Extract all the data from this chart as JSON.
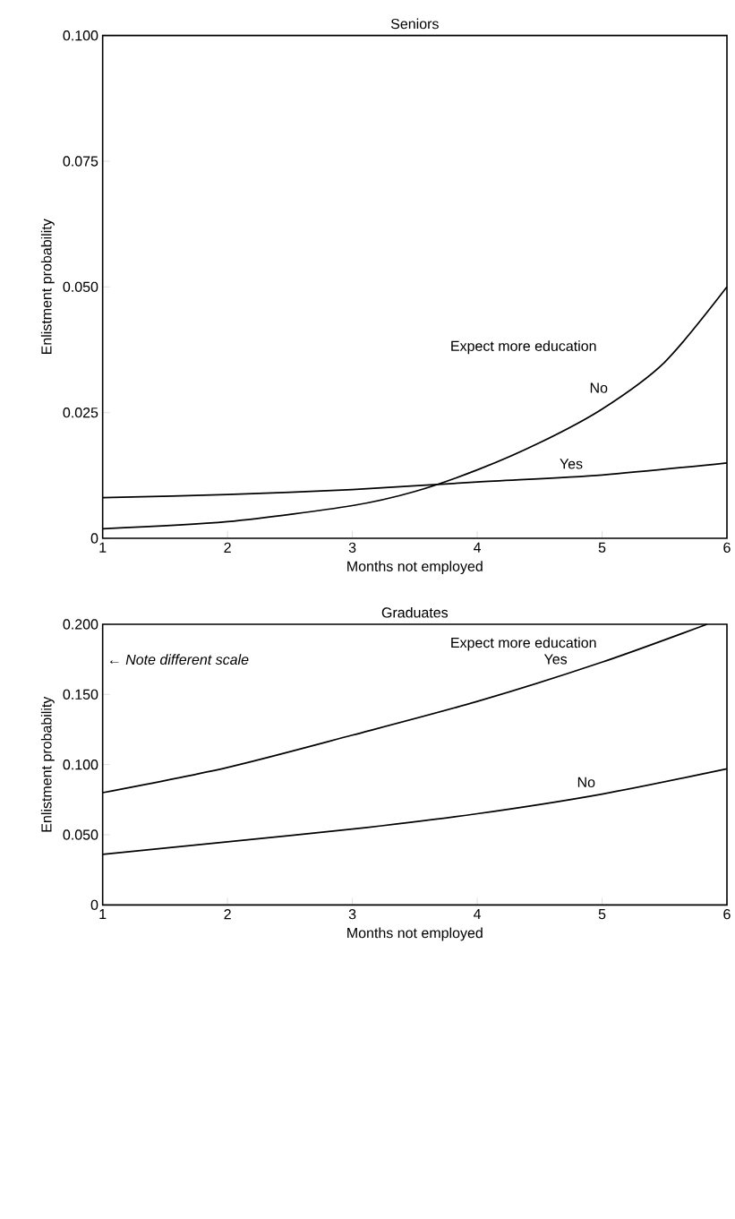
{
  "chart_data": [
    {
      "type": "line",
      "title": "Seniors",
      "xlabel": "Months not employed",
      "ylabel": "Enlistment probability",
      "legend_title": "Expect more education",
      "x": [
        1,
        2,
        3,
        3.5,
        4,
        4.5,
        5,
        5.5,
        6
      ],
      "series": [
        {
          "name": "No",
          "color": "#000000",
          "values": [
            0.0019,
            0.0033,
            0.0065,
            0.0093,
            0.0136,
            0.019,
            0.0257,
            0.035,
            0.05
          ]
        },
        {
          "name": "Yes",
          "color": "#000000",
          "x": [
            1,
            2,
            3,
            4,
            5,
            6
          ],
          "values": [
            0.0081,
            0.0087,
            0.0097,
            0.0112,
            0.0126,
            0.015
          ]
        }
      ],
      "xlim": [
        1,
        6
      ],
      "ylim": [
        0,
        0.1
      ],
      "xticks": [
        1,
        2,
        3,
        4,
        5,
        6
      ],
      "yticks": [
        0,
        0.025,
        {
          "value": 0.05,
          "label": "0.050"
        },
        {
          "value": 0.075,
          "label": "0.075"
        },
        {
          "value": 0.1,
          "label": "0.100"
        }
      ],
      "line_style": "solid",
      "marker": "none"
    },
    {
      "type": "line",
      "title": "Graduates",
      "xlabel": "Months not employed",
      "ylabel": "Enlistment probability",
      "legend_title": "Expect more education",
      "x": [
        1,
        2,
        3,
        4,
        5,
        6
      ],
      "series": [
        {
          "name": "Yes",
          "color": "#000000",
          "x": [
            1,
            2,
            3,
            4,
            5,
            5.84
          ],
          "values": [
            0.08,
            0.098,
            0.121,
            0.145,
            0.173,
            0.2
          ]
        },
        {
          "name": "No",
          "color": "#000000",
          "values": [
            0.036,
            0.045,
            0.054,
            0.065,
            0.079,
            0.097
          ]
        }
      ],
      "xlim": [
        1,
        6
      ],
      "ylim": [
        0,
        0.2
      ],
      "xticks": [
        1,
        2,
        3,
        4,
        5,
        6
      ],
      "yticks": [
        0,
        {
          "value": 0.05,
          "label": "0.050"
        },
        {
          "value": 0.1,
          "label": "0.100"
        },
        {
          "value": 0.15,
          "label": "0.150"
        },
        {
          "value": 0.2,
          "label": "0.200"
        }
      ],
      "annotations": [
        "← *Note different scale*"
      ],
      "line_style": "solid",
      "marker": "none"
    }
  ]
}
